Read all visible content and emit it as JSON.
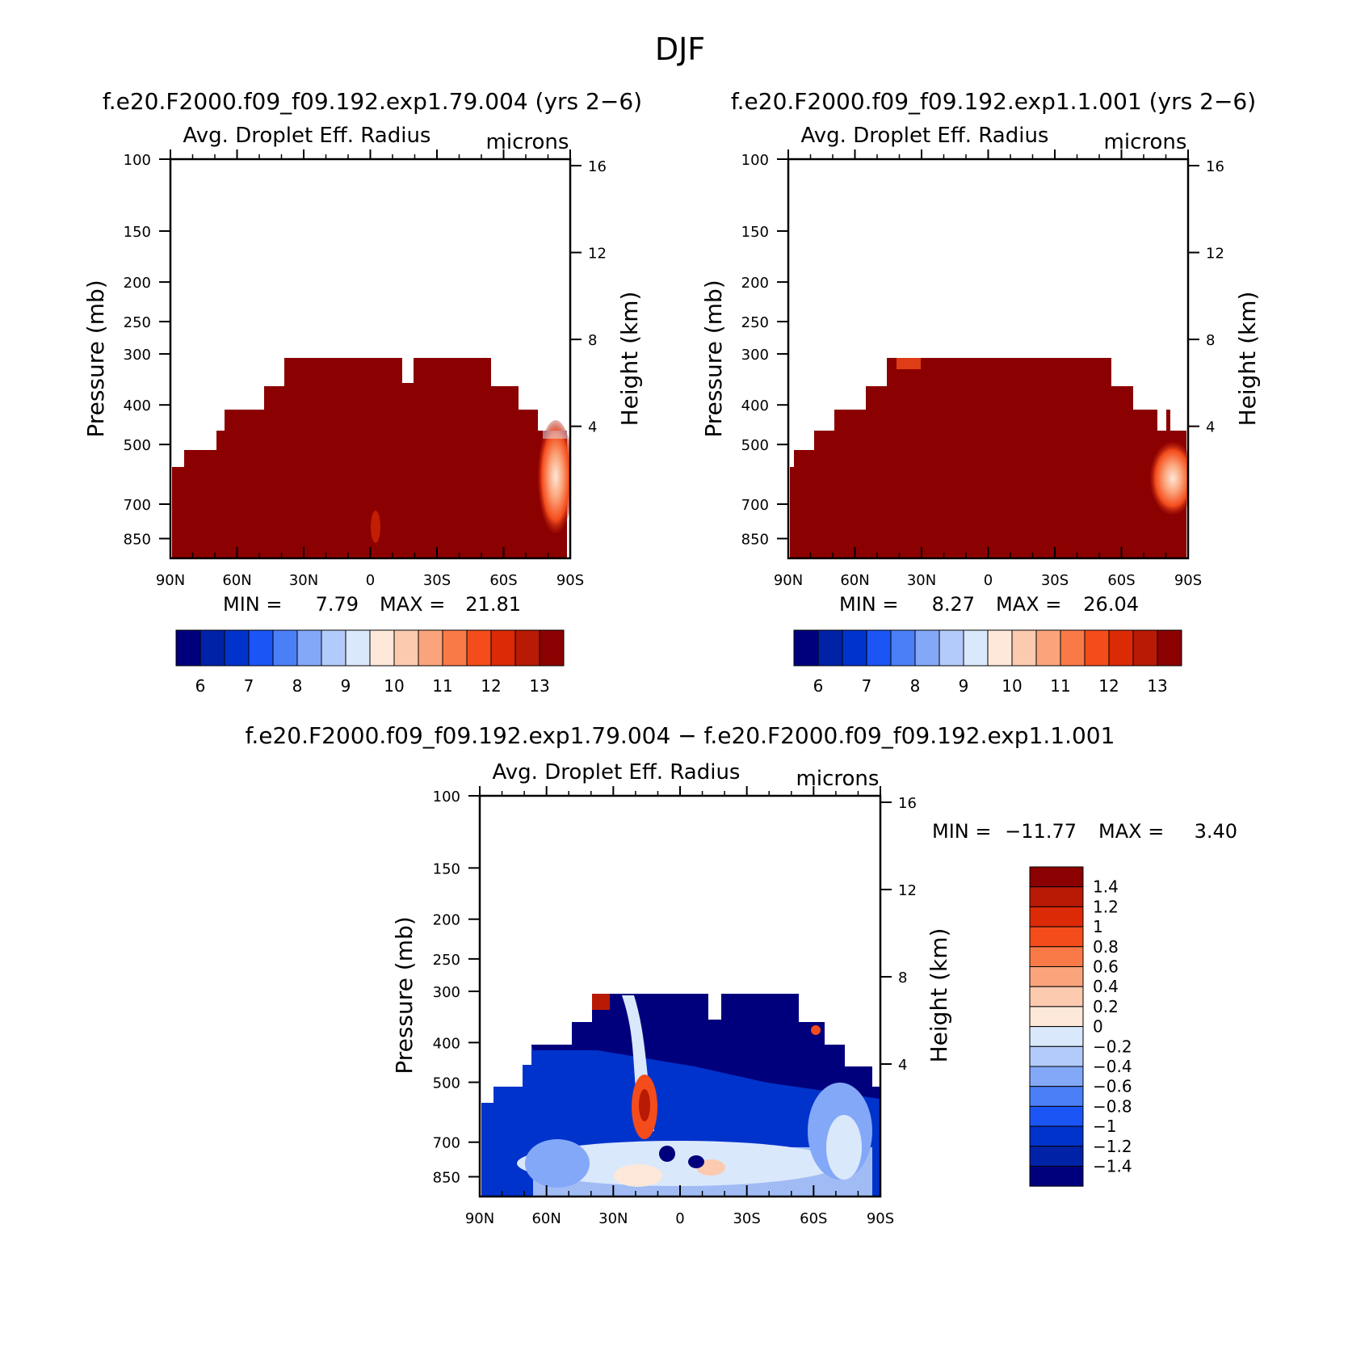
{
  "figure": {
    "title": "DJF",
    "top_left_title": "f.e20.F2000.f09_f09.192.exp1.79.004 (yrs 2−6)",
    "top_right_title": "f.e20.F2000.f09_f09.192.exp1.1.001 (yrs 2−6)",
    "bottom_title": "f.e20.F2000.f09_f09.192.exp1.79.004 − f.e20.F2000.f09_f09.192.exp1.1.001"
  },
  "colors": {
    "abs_scale": [
      "#00007d",
      "#0022a7",
      "#0033cc",
      "#1b55f5",
      "#4b7ff7",
      "#83a8f8",
      "#b3cbfa",
      "#dae8fb",
      "#fde8d9",
      "#fccaaf",
      "#fba47b",
      "#fa7a47",
      "#f44c1b",
      "#dc2a06",
      "#b81a06",
      "#8b0000"
    ],
    "diff_scale": [
      "#00007d",
      "#0022a7",
      "#0033cc",
      "#1b55f5",
      "#4b7ff7",
      "#83a8f8",
      "#b3cbfa",
      "#dae8fb",
      "#fde8d9",
      "#fccaaf",
      "#fba47b",
      "#fa7a47",
      "#f44c1b",
      "#dc2a06",
      "#b81a06",
      "#8b0000"
    ]
  },
  "chart_data": [
    {
      "type": "heatmap",
      "name": "panel-left",
      "title": "Avg. Droplet Eff. Radius",
      "units": "microns",
      "ylabel": "Pressure (mb)",
      "ylabel_right": "Height (km)",
      "x_ticks": [
        "90N",
        "60N",
        "30N",
        "0",
        "30S",
        "60S",
        "90S"
      ],
      "x_tick_values": [
        90,
        60,
        30,
        0,
        -30,
        -60,
        -90
      ],
      "y_ticks": [
        "100",
        "150",
        "200",
        "250",
        "300",
        "400",
        "500",
        "700",
        "850"
      ],
      "y_tick_values": [
        100,
        150,
        200,
        250,
        300,
        400,
        500,
        700,
        850
      ],
      "y_right_ticks": [
        "4",
        "8",
        "12",
        "16"
      ],
      "y_right_tick_values": [
        4,
        8,
        12,
        16
      ],
      "ylim": [
        100,
        1000
      ],
      "xlim": [
        90,
        -90
      ],
      "yscale": "log",
      "min_label": "MIN =",
      "min_value": "7.79",
      "max_label": "MAX =",
      "max_value": "21.81",
      "colorbar_labels": [
        "6",
        "7",
        "8",
        "9",
        "10",
        "11",
        "12",
        "13"
      ],
      "colorbar_levels": [
        6,
        6.5,
        7,
        7.5,
        8,
        8.5,
        9,
        9.5,
        10,
        10.5,
        11,
        11.5,
        12,
        12.5,
        13
      ],
      "field_description_top_pressure_by_latitude": {
        "lat": [
          90,
          86,
          80,
          73,
          67,
          59,
          52,
          45,
          39,
          25,
          13,
          -15,
          -30,
          -38,
          -40,
          -52,
          -62,
          -70,
          -74,
          -84,
          -90
        ],
        "top_hPa": [
          600,
          600,
          500,
          500,
          450,
          400,
          400,
          380,
          300,
          300,
          300,
          300,
          300,
          300,
          300,
          350,
          400,
          400,
          450,
          450,
          450
        ]
      }
    },
    {
      "type": "heatmap",
      "name": "panel-right",
      "title": "Avg. Droplet Eff. Radius",
      "units": "microns",
      "ylabel": "Pressure (mb)",
      "ylabel_right": "Height (km)",
      "x_ticks": [
        "90N",
        "60N",
        "30N",
        "0",
        "30S",
        "60S",
        "90S"
      ],
      "x_tick_values": [
        90,
        60,
        30,
        0,
        -30,
        -60,
        -90
      ],
      "y_ticks": [
        "100",
        "150",
        "200",
        "250",
        "300",
        "400",
        "500",
        "700",
        "850"
      ],
      "y_tick_values": [
        100,
        150,
        200,
        250,
        300,
        400,
        500,
        700,
        850
      ],
      "y_right_ticks": [
        "4",
        "8",
        "12",
        "16"
      ],
      "y_right_tick_values": [
        4,
        8,
        12,
        16
      ],
      "ylim": [
        100,
        1000
      ],
      "xlim": [
        90,
        -90
      ],
      "yscale": "log",
      "min_label": "MIN =",
      "min_value": "8.27",
      "max_label": "MAX =",
      "max_value": "26.04",
      "colorbar_labels": [
        "6",
        "7",
        "8",
        "9",
        "10",
        "11",
        "12",
        "13"
      ],
      "colorbar_levels": [
        6,
        6.5,
        7,
        7.5,
        8,
        8.5,
        9,
        9.5,
        10,
        10.5,
        11,
        11.5,
        12,
        12.5,
        13
      ]
    },
    {
      "type": "heatmap",
      "name": "panel-difference",
      "title": "Avg. Droplet Eff. Radius",
      "units": "microns",
      "ylabel": "Pressure (mb)",
      "ylabel_right": "Height (km)",
      "x_ticks": [
        "90N",
        "60N",
        "30N",
        "0",
        "30S",
        "60S",
        "90S"
      ],
      "x_tick_values": [
        90,
        60,
        30,
        0,
        -30,
        -60,
        -90
      ],
      "y_ticks": [
        "100",
        "150",
        "200",
        "250",
        "300",
        "400",
        "500",
        "700",
        "850"
      ],
      "y_tick_values": [
        100,
        150,
        200,
        250,
        300,
        400,
        500,
        700,
        850
      ],
      "y_right_ticks": [
        "4",
        "8",
        "12",
        "16"
      ],
      "y_right_tick_values": [
        4,
        8,
        12,
        16
      ],
      "ylim": [
        100,
        1000
      ],
      "xlim": [
        90,
        -90
      ],
      "yscale": "log",
      "min_label": "MIN =",
      "min_value": "−11.77",
      "max_label": "MAX =",
      "max_value": "3.40",
      "colorbar_labels": [
        "1.4",
        "1.2",
        "1",
        "0.8",
        "0.6",
        "0.4",
        "0.2",
        "0",
        "−0.2",
        "−0.4",
        "−0.6",
        "−0.8",
        "−1",
        "−1.2",
        "−1.4"
      ],
      "colorbar_levels": [
        1.4,
        1.2,
        1,
        0.8,
        0.6,
        0.4,
        0.2,
        0,
        -0.2,
        -0.4,
        -0.6,
        -0.8,
        -1,
        -1.2,
        -1.4
      ]
    }
  ]
}
